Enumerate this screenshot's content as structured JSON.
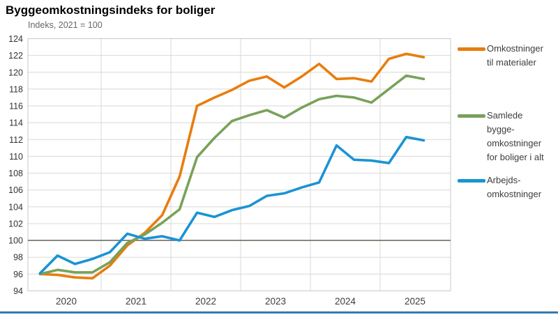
{
  "header": {
    "title": "Byggeomkostningsindeks for boliger",
    "subtitle": "Indeks, 2021 = 100"
  },
  "legend": {
    "items": [
      {
        "label": "Omkostninger\ntil materialer",
        "color": "#e87d0d"
      },
      {
        "label": "Samlede\nbygge-\nomkostninger\nfor boliger i alt",
        "color": "#78a25a"
      },
      {
        "label": "Arbejds-\nomkostninger",
        "color": "#1a93d5"
      }
    ]
  },
  "chart_data": {
    "type": "line",
    "title": "Byggeomkostningsindeks for boliger",
    "subtitle": "Indeks, 2021 = 100",
    "x_unit": "quarter",
    "x": [
      "2020Q1",
      "2020Q2",
      "2020Q3",
      "2020Q4",
      "2021Q1",
      "2021Q2",
      "2021Q3",
      "2021Q4",
      "2022Q1",
      "2022Q2",
      "2022Q3",
      "2022Q4",
      "2023Q1",
      "2023Q2",
      "2023Q3",
      "2023Q4",
      "2024Q1",
      "2024Q2",
      "2024Q3",
      "2024Q4",
      "2025Q1",
      "2025Q2",
      "2025Q3"
    ],
    "year_labels": [
      "2020",
      "2021",
      "2022",
      "2023",
      "2024",
      "2025"
    ],
    "ylim": [
      94,
      124
    ],
    "ytick_step": 2,
    "reference_line": {
      "value": 100,
      "color": "#6e6e64"
    },
    "grid": true,
    "legend_position": "right",
    "series": [
      {
        "name": "Omkostninger til materialer",
        "color": "#e87d0d",
        "values": [
          96.0,
          95.9,
          95.6,
          95.5,
          97.0,
          99.4,
          100.9,
          103.0,
          107.6,
          116.0,
          117.0,
          117.9,
          119.0,
          119.5,
          118.2,
          119.5,
          121.0,
          119.2,
          119.3,
          118.9,
          121.6,
          122.2,
          121.8
        ]
      },
      {
        "name": "Samlede byggeomkostninger for boliger i alt",
        "color": "#78a25a",
        "values": [
          96.0,
          96.5,
          96.2,
          96.2,
          97.4,
          99.7,
          100.7,
          102.1,
          103.7,
          109.9,
          112.2,
          114.2,
          114.9,
          115.5,
          114.6,
          115.8,
          116.8,
          117.2,
          117.0,
          116.4,
          118.0,
          119.6,
          119.2
        ]
      },
      {
        "name": "Arbejdsomkostninger",
        "color": "#1a93d5",
        "values": [
          96.1,
          98.2,
          97.2,
          97.8,
          98.6,
          100.8,
          100.2,
          100.5,
          100.0,
          103.3,
          102.8,
          103.6,
          104.1,
          105.3,
          105.6,
          106.3,
          106.9,
          111.3,
          109.6,
          109.5,
          109.2,
          112.3,
          111.9
        ]
      }
    ],
    "colors": {
      "gridline": "#d8d8d4",
      "plot_border": "#c8c8c4",
      "tick_text": "#333333",
      "footer_rule": "#3579ad"
    }
  }
}
